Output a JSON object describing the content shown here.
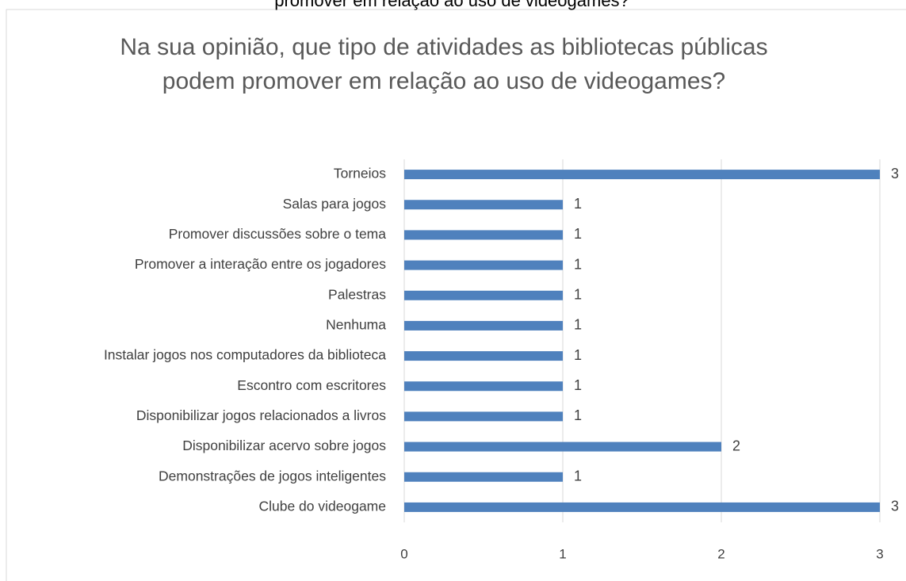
{
  "caption": "promover em relação ao uso de videogames?",
  "chart_data": {
    "type": "bar",
    "orientation": "horizontal",
    "title": "Na sua opinião, que tipo de atividades as bibliotecas públicas podem promover em relação ao uso de videogames?",
    "categories": [
      "Torneios",
      "Salas para jogos",
      "Promover discussões sobre o tema",
      "Promover a interação entre os jogadores",
      "Palestras",
      "Nenhuma",
      "Instalar jogos nos computadores da biblioteca",
      "Escontro com escritores",
      "Disponibilizar jogos relacionados a livros",
      "Disponibilizar acervo sobre jogos",
      "Demonstrações de jogos inteligentes",
      "Clube do videogame"
    ],
    "values": [
      3,
      1,
      1,
      1,
      1,
      1,
      1,
      1,
      1,
      2,
      1,
      3
    ],
    "color": "#4f81bd",
    "xlim": [
      0,
      3
    ],
    "xticks": [
      0,
      1,
      2,
      3
    ],
    "grid": true,
    "data_labels": true
  }
}
